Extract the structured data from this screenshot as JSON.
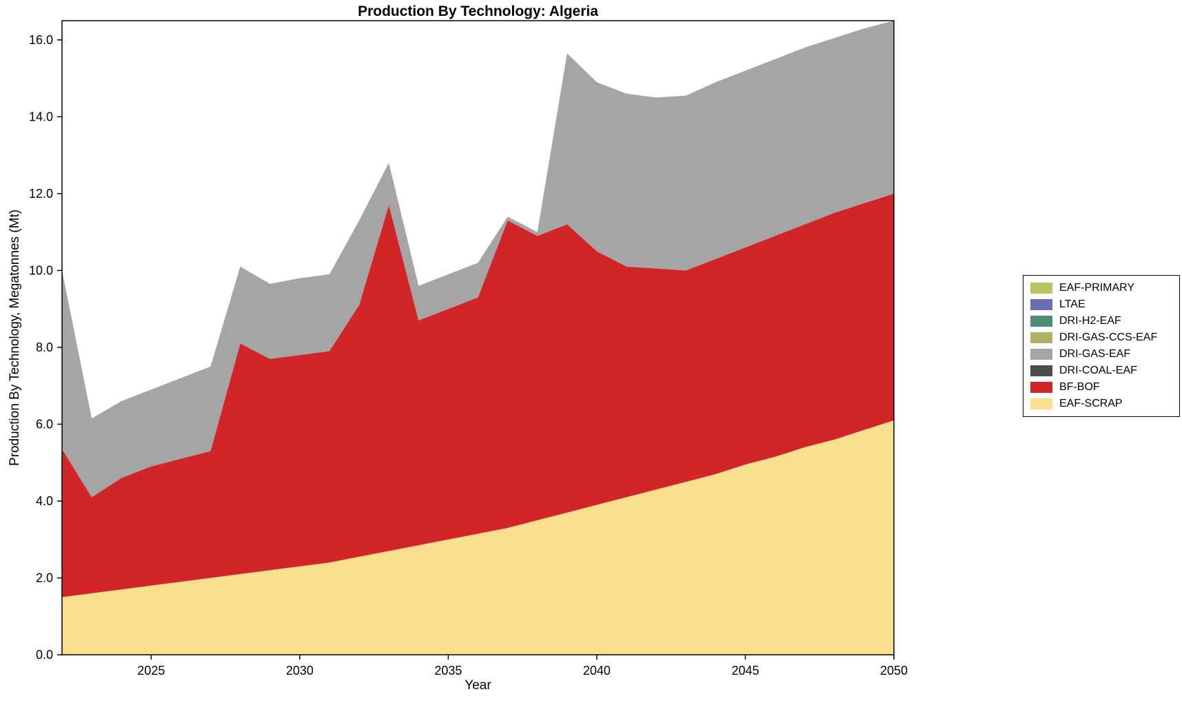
{
  "chart_data": {
    "type": "area",
    "stacked": true,
    "title": "Production By Technology: Algeria",
    "xlabel": "Year",
    "ylabel": "Production By Technology, Megatonnes (Mt)",
    "grid": false,
    "legend_position": "right-outside",
    "xlim": [
      2022,
      2050
    ],
    "ylim": [
      0,
      16.5
    ],
    "x": [
      2022,
      2023,
      2024,
      2025,
      2026,
      2027,
      2028,
      2029,
      2030,
      2031,
      2032,
      2033,
      2034,
      2035,
      2036,
      2037,
      2038,
      2039,
      2040,
      2041,
      2042,
      2043,
      2044,
      2045,
      2046,
      2047,
      2048,
      2049,
      2050
    ],
    "xticks": {
      "values": [
        2025,
        2030,
        2035,
        2040,
        2045,
        2050
      ],
      "labels": [
        "2025",
        "2030",
        "2035",
        "2040",
        "2045",
        "2050"
      ]
    },
    "yticks": {
      "values": [
        0,
        2,
        4,
        6,
        8,
        10,
        12,
        14,
        16
      ],
      "labels": [
        "0.0",
        "2.0",
        "4.0",
        "6.0",
        "8.0",
        "10.0",
        "12.0",
        "14.0",
        "16.0"
      ]
    },
    "stack_order": "bottom-to-top",
    "series": [
      {
        "name": "EAF-SCRAP",
        "color": "#FAE08E",
        "values": [
          1.5,
          1.6,
          1.7,
          1.8,
          1.9,
          2.0,
          2.1,
          2.2,
          2.3,
          2.4,
          2.55,
          2.7,
          2.85,
          3.0,
          3.15,
          3.3,
          3.5,
          3.7,
          3.9,
          4.1,
          4.3,
          4.5,
          4.7,
          4.95,
          5.15,
          5.4,
          5.6,
          5.85,
          6.1
        ]
      },
      {
        "name": "BF-BOF",
        "color": "#D22528",
        "values": [
          3.85,
          2.5,
          2.9,
          3.1,
          3.2,
          3.3,
          6.0,
          5.5,
          5.5,
          5.5,
          6.55,
          9.0,
          5.85,
          6.0,
          6.15,
          8.0,
          7.4,
          7.5,
          6.6,
          6.0,
          5.75,
          5.5,
          5.6,
          5.65,
          5.75,
          5.8,
          5.9,
          5.9,
          5.9
        ]
      },
      {
        "name": "DRI-COAL-EAF",
        "color": "#4D4D4D",
        "values": [
          0,
          0,
          0,
          0,
          0,
          0,
          0,
          0,
          0,
          0,
          0,
          0,
          0,
          0,
          0,
          0,
          0,
          0,
          0,
          0,
          0,
          0,
          0,
          0,
          0,
          0,
          0,
          0,
          0
        ]
      },
      {
        "name": "DRI-GAS-EAF",
        "color": "#A5A5A5",
        "values": [
          4.65,
          2.05,
          2.0,
          2.0,
          2.1,
          2.2,
          2.0,
          1.95,
          2.0,
          2.0,
          2.2,
          1.1,
          0.9,
          0.9,
          0.9,
          0.1,
          0.1,
          4.45,
          4.4,
          4.5,
          4.45,
          4.55,
          4.6,
          4.6,
          4.6,
          4.6,
          4.55,
          4.55,
          4.5
        ]
      },
      {
        "name": "DRI-GAS-CCS-EAF",
        "color": "#B3AF63",
        "values": [
          0,
          0,
          0,
          0,
          0,
          0,
          0,
          0,
          0,
          0,
          0,
          0,
          0,
          0,
          0,
          0,
          0,
          0,
          0,
          0,
          0,
          0,
          0,
          0,
          0,
          0,
          0,
          0,
          0
        ]
      },
      {
        "name": "DRI-H2-EAF",
        "color": "#4C8E78",
        "values": [
          0,
          0,
          0,
          0,
          0,
          0,
          0,
          0,
          0,
          0,
          0,
          0,
          0,
          0,
          0,
          0,
          0,
          0,
          0,
          0,
          0,
          0,
          0,
          0,
          0,
          0,
          0,
          0,
          0
        ]
      },
      {
        "name": "LTAE",
        "color": "#6A6DB5",
        "values": [
          0,
          0,
          0,
          0,
          0,
          0,
          0,
          0,
          0,
          0,
          0,
          0,
          0,
          0,
          0,
          0,
          0,
          0,
          0,
          0,
          0,
          0,
          0,
          0,
          0,
          0,
          0,
          0,
          0
        ]
      },
      {
        "name": "EAF-PRIMARY",
        "color": "#B7C75F",
        "values": [
          0,
          0,
          0,
          0,
          0,
          0,
          0,
          0,
          0,
          0,
          0,
          0,
          0,
          0,
          0,
          0,
          0,
          0,
          0,
          0,
          0,
          0,
          0,
          0,
          0,
          0,
          0,
          0,
          0
        ]
      }
    ]
  }
}
